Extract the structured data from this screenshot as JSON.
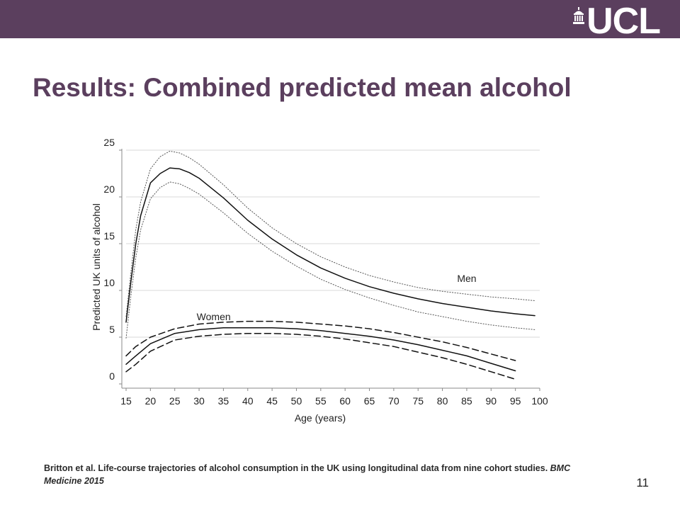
{
  "header": {
    "logo_text": "UCL",
    "logo_icon": "portico-icon",
    "bar_color": "#5b3f5e"
  },
  "slide": {
    "title": "Results: Combined predicted mean alcohol",
    "page_number": "11",
    "title_color": "#5b3f5e"
  },
  "citation": {
    "text": "Britton et al. Life-course trajectories of alcohol consumption in the UK using longitudinal data from nine cohort studies.",
    "journal": "BMC Medicine 2015"
  },
  "chart_data": {
    "type": "line",
    "title": "",
    "xlabel": "Age (years)",
    "ylabel": "Predicted UK units of alcohol",
    "xlim": [
      15,
      100
    ],
    "ylim": [
      0,
      25
    ],
    "xticks": [
      15,
      20,
      25,
      30,
      35,
      40,
      45,
      50,
      55,
      60,
      65,
      70,
      75,
      80,
      85,
      90,
      95,
      100
    ],
    "yticks": [
      0,
      5,
      10,
      15,
      20,
      25
    ],
    "grid": "horizontal",
    "legend": "none",
    "series": [
      {
        "name": "Men",
        "role": "estimate",
        "style": "solid",
        "x": [
          15,
          16,
          17,
          18,
          20,
          22,
          24,
          26,
          28,
          30,
          35,
          40,
          45,
          50,
          55,
          60,
          65,
          70,
          75,
          80,
          85,
          90,
          95,
          99
        ],
        "y": [
          6.6,
          11.0,
          15.0,
          18.0,
          21.5,
          22.5,
          23.1,
          23.0,
          22.6,
          22.0,
          19.9,
          17.5,
          15.5,
          13.8,
          12.4,
          11.3,
          10.4,
          9.7,
          9.1,
          8.6,
          8.2,
          7.8,
          7.5,
          7.3
        ]
      },
      {
        "name": "",
        "role": "upper CI",
        "style": "dotted",
        "x": [
          15,
          16,
          17,
          18,
          20,
          22,
          24,
          26,
          28,
          30,
          35,
          40,
          45,
          50,
          55,
          60,
          65,
          70,
          75,
          80,
          85,
          90,
          95,
          99
        ],
        "y": [
          7.2,
          12.0,
          16.5,
          19.5,
          23.0,
          24.3,
          24.9,
          24.7,
          24.2,
          23.5,
          21.3,
          18.8,
          16.7,
          15.0,
          13.6,
          12.5,
          11.6,
          10.9,
          10.3,
          9.9,
          9.6,
          9.3,
          9.1,
          8.9
        ]
      },
      {
        "name": "",
        "role": "lower CI",
        "style": "dotted",
        "x": [
          15,
          16,
          17,
          18,
          20,
          22,
          24,
          26,
          28,
          30,
          35,
          40,
          45,
          50,
          55,
          60,
          65,
          70,
          75,
          80,
          85,
          90,
          95,
          99
        ],
        "y": [
          4.9,
          9.5,
          13.5,
          16.5,
          19.8,
          21.0,
          21.6,
          21.4,
          20.9,
          20.3,
          18.3,
          16.1,
          14.2,
          12.6,
          11.2,
          10.1,
          9.2,
          8.4,
          7.7,
          7.2,
          6.7,
          6.3,
          6.0,
          5.8
        ]
      },
      {
        "name": "Women",
        "role": "estimate",
        "style": "solid",
        "x": [
          15,
          17,
          20,
          25,
          30,
          35,
          40,
          45,
          50,
          55,
          60,
          65,
          70,
          75,
          80,
          85,
          90,
          95
        ],
        "y": [
          2.1,
          3.0,
          4.3,
          5.4,
          5.8,
          6.0,
          6.0,
          6.0,
          5.9,
          5.7,
          5.4,
          5.1,
          4.7,
          4.2,
          3.6,
          3.0,
          2.2,
          1.4
        ]
      },
      {
        "name": "",
        "role": "upper CI",
        "style": "dashed",
        "x": [
          15,
          17,
          20,
          25,
          30,
          35,
          40,
          45,
          50,
          55,
          60,
          65,
          70,
          75,
          80,
          85,
          90,
          95
        ],
        "y": [
          3.0,
          4.0,
          5.0,
          5.9,
          6.4,
          6.6,
          6.7,
          6.7,
          6.6,
          6.4,
          6.2,
          5.9,
          5.5,
          5.0,
          4.5,
          3.9,
          3.2,
          2.5
        ]
      },
      {
        "name": "",
        "role": "lower CI",
        "style": "dashed",
        "x": [
          15,
          17,
          20,
          25,
          30,
          35,
          40,
          45,
          50,
          55,
          60,
          65,
          70,
          75,
          80,
          85,
          90,
          95
        ],
        "y": [
          1.3,
          2.1,
          3.5,
          4.7,
          5.1,
          5.3,
          5.4,
          5.4,
          5.3,
          5.1,
          4.8,
          4.4,
          4.0,
          3.4,
          2.8,
          2.1,
          1.3,
          0.5
        ]
      }
    ],
    "annotations": [
      {
        "text": "Men",
        "x": 85,
        "y": 10.9
      },
      {
        "text": "Women",
        "x": 33,
        "y": 6.8
      }
    ]
  }
}
